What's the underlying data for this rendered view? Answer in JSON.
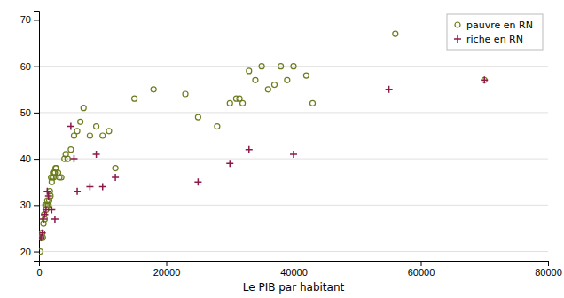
{
  "chart_data": {
    "type": "scatter",
    "xlabel": "Le PIB par habitant",
    "xlim": [
      0,
      80000
    ],
    "ylim": [
      18,
      72
    ],
    "xticks": [
      0,
      20000,
      40000,
      60000,
      80000
    ],
    "yticks": [
      20,
      30,
      40,
      50,
      60,
      70
    ],
    "grid": "y",
    "legend": "upper right",
    "series": [
      {
        "name": "pauvre en RN",
        "color": "#6b7c1a",
        "marker": "circle",
        "x": [
          200,
          300,
          400,
          500,
          600,
          700,
          800,
          900,
          1000,
          1100,
          1200,
          1300,
          1400,
          1500,
          1600,
          1700,
          1800,
          1900,
          2000,
          2100,
          2200,
          2300,
          2400,
          2500,
          2600,
          2700,
          3000,
          3200,
          3500,
          4000,
          4200,
          4500,
          5000,
          5500,
          6000,
          6500,
          7000,
          8000,
          9000,
          10000,
          11000,
          12000,
          15000,
          18000,
          23000,
          25000,
          28000,
          30000,
          31000,
          31500,
          32000,
          33000,
          34000,
          35000,
          36000,
          37000,
          38000,
          39000,
          40000,
          42000,
          43000,
          56000,
          70000
        ],
        "values": [
          20,
          23,
          23,
          24,
          23,
          26,
          28,
          27,
          30,
          29,
          30,
          31,
          30,
          30,
          31,
          33,
          32,
          36,
          35,
          36,
          37,
          36,
          37,
          37,
          38,
          38,
          37,
          36,
          36,
          40,
          41,
          40,
          42,
          45,
          46,
          48,
          51,
          45,
          47,
          45,
          46,
          38,
          53,
          55,
          54,
          49,
          47,
          52,
          53,
          53,
          52,
          59,
          57,
          60,
          55,
          56,
          60,
          57,
          60,
          58,
          52,
          67,
          57
        ]
      },
      {
        "name": "riche en RN",
        "color": "#8b1a4a",
        "marker": "plus",
        "x": [
          300,
          500,
          700,
          900,
          1100,
          1300,
          1500,
          2000,
          2500,
          5000,
          5500,
          6000,
          8000,
          9000,
          10000,
          12000,
          25000,
          30000,
          33000,
          40000,
          55000,
          70000
        ],
        "values": [
          23,
          24,
          27,
          28,
          29,
          33,
          32,
          29,
          27,
          47,
          40,
          33,
          34,
          41,
          34,
          36,
          35,
          39,
          42,
          41,
          55,
          57
        ]
      }
    ]
  }
}
